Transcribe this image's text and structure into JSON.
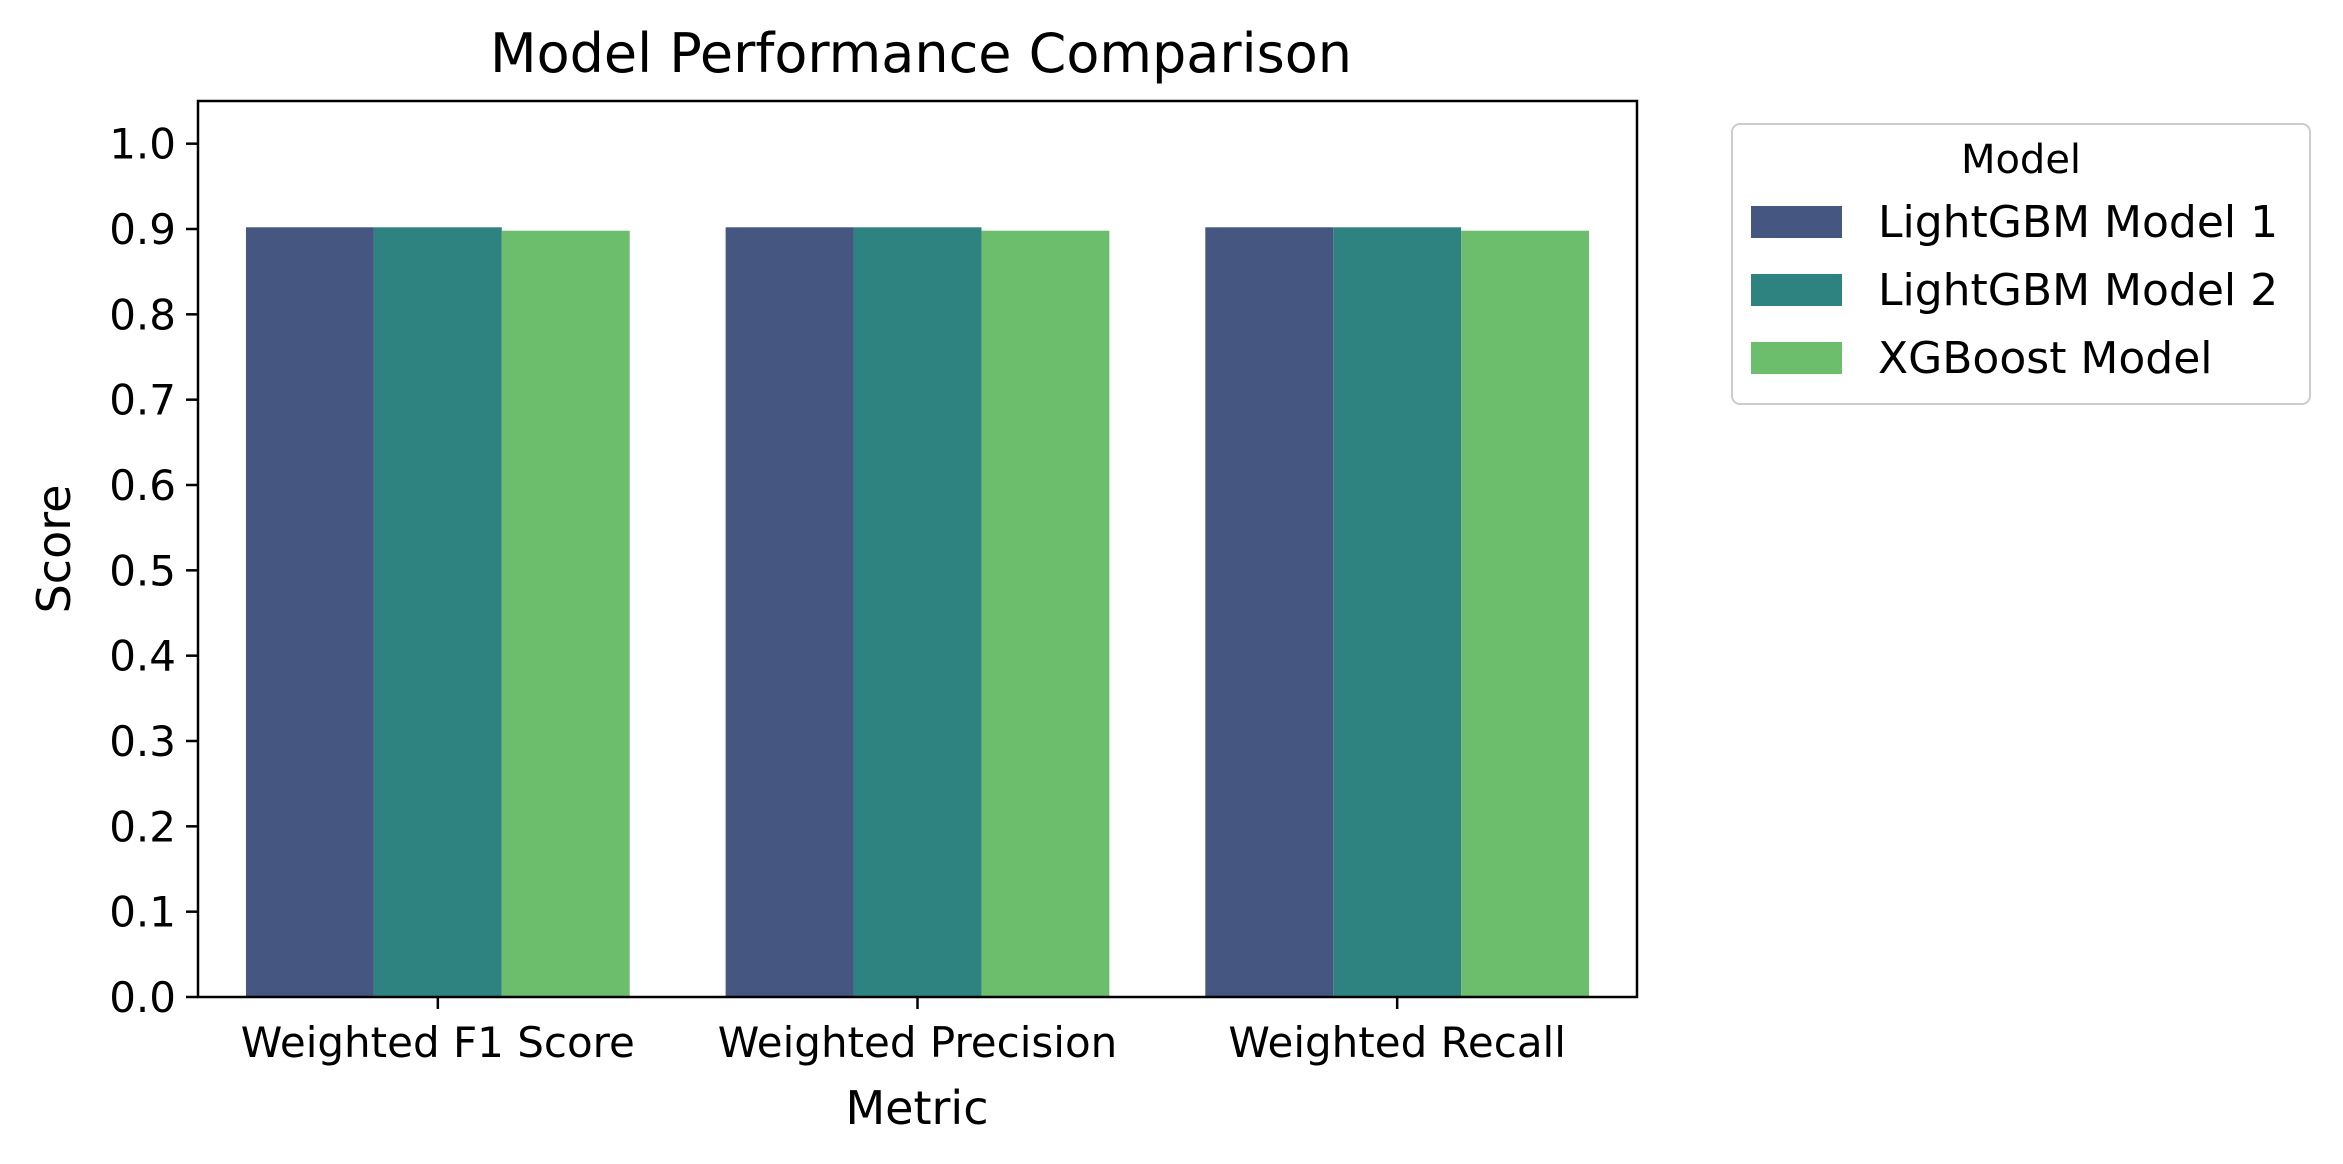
{
  "chart_data": {
    "type": "bar",
    "title": "Model Performance Comparison",
    "xlabel": "Metric",
    "ylabel": "Score",
    "categories": [
      "Weighted F1 Score",
      "Weighted Precision",
      "Weighted Recall"
    ],
    "series": [
      {
        "name": "LightGBM Model 1",
        "values": [
          0.902,
          0.902,
          0.902
        ],
        "color": "#455681"
      },
      {
        "name": "LightGBM Model 2",
        "values": [
          0.902,
          0.902,
          0.902
        ],
        "color": "#2e8280"
      },
      {
        "name": "XGBoost Model",
        "values": [
          0.898,
          0.898,
          0.898
        ],
        "color": "#6cbd6c"
      }
    ],
    "ylim": [
      0,
      1.05
    ],
    "yticks": [
      "0.0",
      "0.1",
      "0.2",
      "0.3",
      "0.4",
      "0.5",
      "0.6",
      "0.7",
      "0.8",
      "0.9",
      "1.0"
    ],
    "legend": {
      "title": "Model",
      "placement": "outside-upper-right"
    },
    "grid": false
  }
}
